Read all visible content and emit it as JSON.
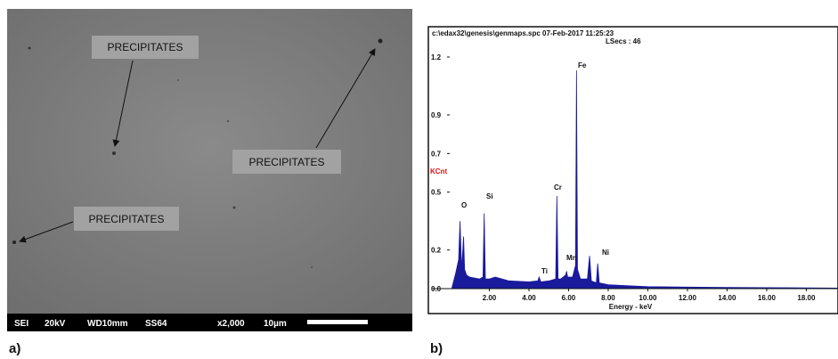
{
  "panel_a": {
    "label": "a)",
    "annotations": [
      "PRECIPITATES",
      "PRECIPITATES",
      "PRECIPITATES"
    ],
    "info_bar": [
      "SEI",
      "20kV",
      "WD10mm",
      "SS64",
      "x2,000",
      "10µm"
    ]
  },
  "panel_b": {
    "label": "b)",
    "chart_data": {
      "type": "area",
      "header": "c:\\edax32\\genesis\\genmaps.spc  07-Feb-2017 11:25:23",
      "subheader": "LSecs :  46",
      "y_label": "KCnt",
      "x_label": "Energy - keV",
      "color": "#1a1a9c",
      "xlim": [
        0,
        19.6
      ],
      "ylim": [
        0,
        1.2
      ],
      "yticks": [
        {
          "value": 0,
          "label": "0.0"
        },
        0.2,
        0.5,
        0.7,
        0.9,
        1.2
      ],
      "xticks": [
        {
          "value": 2,
          "label": "2.00"
        },
        {
          "value": 4,
          "label": "4.00"
        },
        {
          "value": 6,
          "label": "6.00"
        },
        {
          "value": 8,
          "label": "8.00"
        },
        {
          "value": 10,
          "label": "10.00"
        },
        {
          "value": 12,
          "label": "12.00"
        },
        {
          "value": 14,
          "label": "14.00"
        },
        {
          "value": 16,
          "label": "16.00"
        },
        {
          "value": 18,
          "label": "18.00"
        }
      ],
      "peak_labels": [
        "O",
        "Si",
        "Ti",
        "Cr",
        "Mn",
        "Fe",
        "Ni"
      ],
      "x": [
        0.1,
        0.3,
        0.45,
        0.52,
        0.6,
        0.7,
        0.75,
        0.85,
        1.0,
        1.5,
        1.68,
        1.74,
        1.8,
        2.0,
        2.3,
        3.0,
        4.0,
        4.45,
        4.51,
        4.6,
        5.0,
        5.35,
        5.41,
        5.47,
        5.6,
        5.85,
        5.9,
        5.95,
        6.2,
        6.35,
        6.4,
        6.45,
        6.6,
        6.95,
        7.06,
        7.15,
        7.4,
        7.47,
        7.55,
        8.0,
        9.0,
        10.0,
        12.0,
        14.0,
        16.0,
        18.0,
        19.6
      ],
      "values": [
        0.0,
        0.08,
        0.15,
        0.35,
        0.1,
        0.27,
        0.1,
        0.07,
        0.06,
        0.05,
        0.06,
        0.39,
        0.05,
        0.05,
        0.06,
        0.04,
        0.035,
        0.04,
        0.06,
        0.035,
        0.04,
        0.05,
        0.48,
        0.05,
        0.05,
        0.07,
        0.09,
        0.06,
        0.06,
        0.12,
        1.13,
        0.1,
        0.05,
        0.05,
        0.17,
        0.04,
        0.03,
        0.13,
        0.03,
        0.02,
        0.015,
        0.01,
        0.008,
        0.006,
        0.005,
        0.004,
        0.003
      ]
    }
  }
}
